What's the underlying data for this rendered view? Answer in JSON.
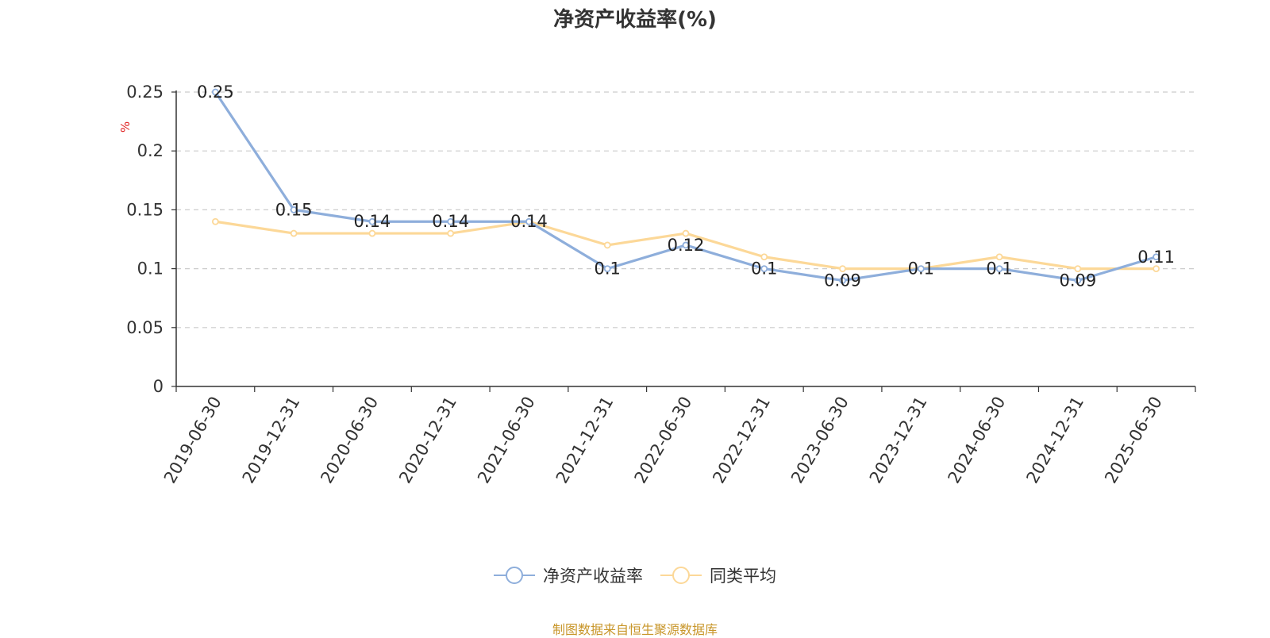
{
  "chart_data": {
    "type": "line",
    "title": "净资产收益率(%)",
    "ylabel": "%",
    "xlabel": "",
    "ylim": [
      0,
      0.25
    ],
    "yticks": [
      "0",
      "0.05",
      "0.1",
      "0.15",
      "0.2",
      "0.25"
    ],
    "grid": true,
    "legend_position": "bottom-center",
    "categories": [
      "2019-06-30",
      "2019-12-31",
      "2020-06-30",
      "2020-12-31",
      "2021-06-30",
      "2021-12-31",
      "2022-06-30",
      "2022-12-31",
      "2023-06-30",
      "2023-12-31",
      "2024-06-30",
      "2024-12-31",
      "2025-06-30"
    ],
    "series": [
      {
        "name": "净资产收益率",
        "color": "#8eaedb",
        "values": [
          0.25,
          0.15,
          0.14,
          0.14,
          0.14,
          0.1,
          0.12,
          0.1,
          0.09,
          0.1,
          0.1,
          0.09,
          0.11
        ],
        "labels": [
          "0.25",
          "0.15",
          "0.14",
          "0.14",
          "0.14",
          "0.1",
          "0.12",
          "0.1",
          "0.09",
          "0.1",
          "0.1",
          "0.09",
          "0.11"
        ]
      },
      {
        "name": "同类平均",
        "color": "#fcd898",
        "values": [
          0.14,
          0.13,
          0.13,
          0.13,
          0.14,
          0.12,
          0.13,
          0.11,
          0.1,
          0.1,
          0.11,
          0.1,
          0.1
        ]
      }
    ]
  },
  "source_note": "制图数据来自恒生聚源数据库"
}
